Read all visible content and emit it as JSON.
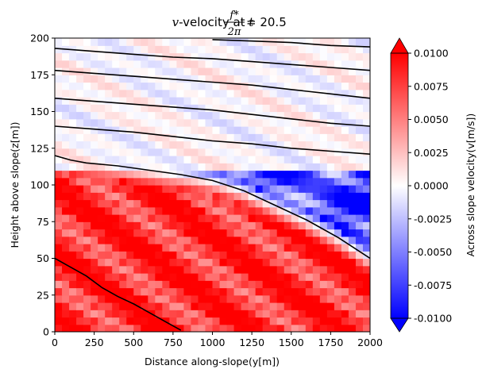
{
  "chart_data": {
    "type": "heatmap",
    "title": {
      "var": "v",
      "pre": "-velocity at ",
      "t": "t",
      "num": "f*",
      "den": "2π",
      "eq": " = 20.5"
    },
    "xlabel": "Distance along-slope(y[m])",
    "ylabel": "Height above slope(z[m])",
    "colorbar_label": "Across slope velocity(v[m/s])",
    "xlim": [
      0,
      2000
    ],
    "ylim": [
      0,
      200
    ],
    "xticks": [
      "0",
      "250",
      "500",
      "750",
      "1000",
      "1250",
      "1500",
      "1750",
      "2000"
    ],
    "yticks": [
      "0",
      "25",
      "50",
      "75",
      "100",
      "125",
      "150",
      "175",
      "200"
    ],
    "clim": [
      -0.01,
      0.01
    ],
    "cticks": [
      "0.0100",
      "0.0075",
      "0.0050",
      "0.0025",
      "0.0000",
      "-0.0025",
      "-0.0050",
      "-0.0075",
      "-0.0100"
    ],
    "colormap": "bwr",
    "colorbar_extend": "both",
    "colors": {
      "negative": "#0000ff",
      "zero": "#ffffff",
      "positive": "#ff0000",
      "contour": "#000000"
    },
    "grid": false,
    "contours": [
      {
        "x": [
          0,
          100,
          200,
          300,
          400,
          500,
          600,
          700,
          800
        ],
        "y": [
          50,
          44,
          38,
          30,
          24,
          19,
          13,
          7,
          1
        ]
      },
      {
        "x": [
          0,
          100,
          200,
          400,
          600,
          800,
          1000,
          1200,
          1400,
          1600,
          1800,
          2000
        ],
        "y": [
          120,
          117,
          115,
          113,
          110,
          107,
          103,
          96,
          86,
          76,
          64,
          50
        ]
      },
      {
        "x": [
          0,
          250,
          500,
          750,
          1000,
          1250,
          1500,
          1750,
          2000
        ],
        "y": [
          140,
          138,
          136,
          133,
          130,
          128,
          125,
          123,
          121
        ]
      },
      {
        "x": [
          0,
          250,
          500,
          750,
          1000,
          1250,
          1500,
          1750,
          2000
        ],
        "y": [
          159,
          157,
          155,
          153,
          151,
          148,
          145,
          142,
          140
        ]
      },
      {
        "x": [
          0,
          250,
          500,
          750,
          1000,
          1250,
          1500,
          1750,
          2000
        ],
        "y": [
          178,
          176,
          174,
          172,
          170,
          168,
          165,
          162,
          159
        ]
      },
      {
        "x": [
          0,
          250,
          500,
          750,
          1000,
          1250,
          1500,
          1750,
          2000
        ],
        "y": [
          193,
          191,
          189,
          187,
          186,
          184,
          182,
          180,
          178
        ]
      },
      {
        "x": [
          1000,
          1250,
          1500,
          1750,
          2000
        ],
        "y": [
          199,
          198,
          197,
          195,
          194
        ]
      }
    ]
  }
}
